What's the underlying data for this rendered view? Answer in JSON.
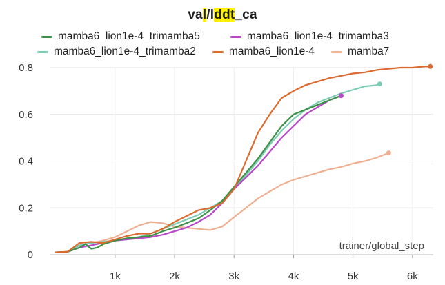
{
  "title": {
    "prefix": "va",
    "hl1": "l",
    "mid": "/l",
    "hl2": "ddt",
    "suffix": "_ca"
  },
  "chart_data": {
    "type": "line",
    "title": "val/lddt_ca",
    "xlabel": "trainer/global_step",
    "ylabel": "",
    "xlim": [
      -100,
      6350
    ],
    "ylim": [
      0,
      0.8
    ],
    "x_ticks": [
      1000,
      2000,
      3000,
      4000,
      5000,
      6000
    ],
    "x_tick_labels": [
      "1k",
      "2k",
      "3k",
      "4k",
      "5k",
      "6k"
    ],
    "y_ticks": [
      0,
      0.2,
      0.4,
      0.6,
      0.8
    ],
    "y_tick_labels": [
      "0",
      "0.2",
      "0.4",
      "0.6",
      "0.8"
    ],
    "grid": true,
    "legend_position": "top",
    "series": [
      {
        "name": "mamba6_lion1e-4_trimamba5",
        "color": "#3d9047",
        "points": [
          [
            0,
            0.01
          ],
          [
            200,
            0.012
          ],
          [
            400,
            0.03
          ],
          [
            500,
            0.045
          ],
          [
            600,
            0.025
          ],
          [
            700,
            0.03
          ],
          [
            800,
            0.045
          ],
          [
            1000,
            0.06
          ],
          [
            1200,
            0.07
          ],
          [
            1400,
            0.075
          ],
          [
            1600,
            0.08
          ],
          [
            1800,
            0.1
          ],
          [
            2000,
            0.115
          ],
          [
            2200,
            0.135
          ],
          [
            2400,
            0.155
          ],
          [
            2600,
            0.19
          ],
          [
            2800,
            0.23
          ],
          [
            3000,
            0.29
          ],
          [
            3200,
            0.35
          ],
          [
            3400,
            0.41
          ],
          [
            3600,
            0.48
          ],
          [
            3800,
            0.55
          ],
          [
            4000,
            0.6
          ],
          [
            4200,
            0.62
          ],
          [
            4400,
            0.64
          ],
          [
            4600,
            0.66
          ],
          [
            4800,
            0.68
          ]
        ],
        "end_marker": false
      },
      {
        "name": "mamba6_lion1e-4_trimamba3",
        "color": "#b848c8",
        "points": [
          [
            0,
            0.01
          ],
          [
            200,
            0.012
          ],
          [
            400,
            0.03
          ],
          [
            600,
            0.04
          ],
          [
            800,
            0.05
          ],
          [
            1000,
            0.06
          ],
          [
            1200,
            0.065
          ],
          [
            1400,
            0.07
          ],
          [
            1600,
            0.075
          ],
          [
            1800,
            0.085
          ],
          [
            2000,
            0.1
          ],
          [
            2200,
            0.115
          ],
          [
            2400,
            0.14
          ],
          [
            2600,
            0.17
          ],
          [
            2800,
            0.22
          ],
          [
            3000,
            0.28
          ],
          [
            3200,
            0.33
          ],
          [
            3400,
            0.38
          ],
          [
            3600,
            0.44
          ],
          [
            3800,
            0.5
          ],
          [
            4000,
            0.55
          ],
          [
            4200,
            0.6
          ],
          [
            4400,
            0.63
          ],
          [
            4600,
            0.66
          ],
          [
            4800,
            0.68
          ]
        ],
        "end_marker": true
      },
      {
        "name": "mamba6_lion1e-4_trimamba2",
        "color": "#7ecbb3",
        "points": [
          [
            0,
            0.01
          ],
          [
            200,
            0.012
          ],
          [
            400,
            0.04
          ],
          [
            600,
            0.05
          ],
          [
            800,
            0.055
          ],
          [
            1000,
            0.06
          ],
          [
            1200,
            0.065
          ],
          [
            1400,
            0.075
          ],
          [
            1600,
            0.09
          ],
          [
            1800,
            0.11
          ],
          [
            2000,
            0.13
          ],
          [
            2200,
            0.15
          ],
          [
            2400,
            0.17
          ],
          [
            2600,
            0.2
          ],
          [
            2800,
            0.23
          ],
          [
            3000,
            0.28
          ],
          [
            3200,
            0.34
          ],
          [
            3400,
            0.4
          ],
          [
            3600,
            0.47
          ],
          [
            3800,
            0.53
          ],
          [
            4000,
            0.58
          ],
          [
            4200,
            0.62
          ],
          [
            4400,
            0.65
          ],
          [
            4600,
            0.67
          ],
          [
            4800,
            0.69
          ],
          [
            5000,
            0.705
          ],
          [
            5200,
            0.72
          ],
          [
            5400,
            0.725
          ],
          [
            5450,
            0.73
          ]
        ],
        "end_marker": true
      },
      {
        "name": "mamba6_lion1e-4",
        "color": "#dc6a2e",
        "points": [
          [
            0,
            0.01
          ],
          [
            200,
            0.012
          ],
          [
            400,
            0.05
          ],
          [
            600,
            0.055
          ],
          [
            800,
            0.05
          ],
          [
            1000,
            0.065
          ],
          [
            1200,
            0.08
          ],
          [
            1400,
            0.09
          ],
          [
            1600,
            0.09
          ],
          [
            1800,
            0.11
          ],
          [
            2000,
            0.14
          ],
          [
            2200,
            0.165
          ],
          [
            2400,
            0.19
          ],
          [
            2600,
            0.2
          ],
          [
            2800,
            0.22
          ],
          [
            3000,
            0.28
          ],
          [
            3200,
            0.4
          ],
          [
            3400,
            0.52
          ],
          [
            3600,
            0.6
          ],
          [
            3800,
            0.67
          ],
          [
            4000,
            0.7
          ],
          [
            4200,
            0.725
          ],
          [
            4400,
            0.74
          ],
          [
            4600,
            0.755
          ],
          [
            4800,
            0.765
          ],
          [
            5000,
            0.775
          ],
          [
            5200,
            0.78
          ],
          [
            5400,
            0.79
          ],
          [
            5600,
            0.795
          ],
          [
            5800,
            0.8
          ],
          [
            6000,
            0.8
          ],
          [
            6200,
            0.805
          ],
          [
            6300,
            0.805
          ]
        ],
        "end_marker": true
      },
      {
        "name": "mamba7",
        "color": "#eeb092",
        "points": [
          [
            0,
            0.01
          ],
          [
            200,
            0.012
          ],
          [
            400,
            0.04
          ],
          [
            600,
            0.05
          ],
          [
            800,
            0.06
          ],
          [
            1000,
            0.075
          ],
          [
            1200,
            0.1
          ],
          [
            1400,
            0.125
          ],
          [
            1600,
            0.14
          ],
          [
            1800,
            0.135
          ],
          [
            2000,
            0.12
          ],
          [
            2200,
            0.115
          ],
          [
            2400,
            0.11
          ],
          [
            2600,
            0.105
          ],
          [
            2800,
            0.12
          ],
          [
            3000,
            0.16
          ],
          [
            3200,
            0.2
          ],
          [
            3400,
            0.24
          ],
          [
            3600,
            0.27
          ],
          [
            3800,
            0.3
          ],
          [
            4000,
            0.32
          ],
          [
            4200,
            0.335
          ],
          [
            4400,
            0.35
          ],
          [
            4600,
            0.365
          ],
          [
            4800,
            0.375
          ],
          [
            5000,
            0.39
          ],
          [
            5200,
            0.4
          ],
          [
            5400,
            0.415
          ],
          [
            5600,
            0.435
          ]
        ],
        "end_marker": true
      }
    ]
  }
}
